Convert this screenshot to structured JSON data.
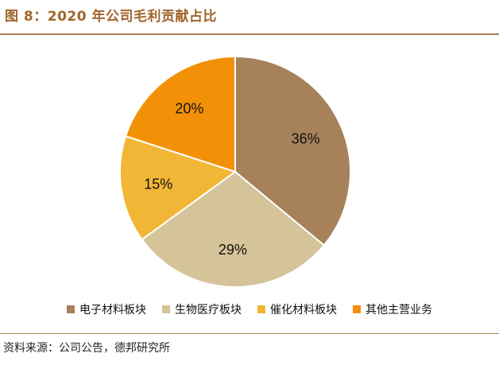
{
  "title": "图 8：2020 年公司毛利贡献占比",
  "source": "资料来源：公司公告，德邦研究所",
  "chart_data": {
    "type": "pie",
    "title": "",
    "slices": [
      {
        "label": "电子材料板块",
        "value": 36,
        "display": "36%",
        "color": "#a6815a"
      },
      {
        "label": "生物医疗板块",
        "value": 29,
        "display": "29%",
        "color": "#d5c399"
      },
      {
        "label": "催化材料板块",
        "value": 15,
        "display": "15%",
        "color": "#f2b636"
      },
      {
        "label": "其他主营业务",
        "value": 20,
        "display": "20%",
        "color": "#f29108"
      }
    ],
    "start_angle": "12 o'clock",
    "direction": "clockwise",
    "legend_position": "bottom"
  }
}
